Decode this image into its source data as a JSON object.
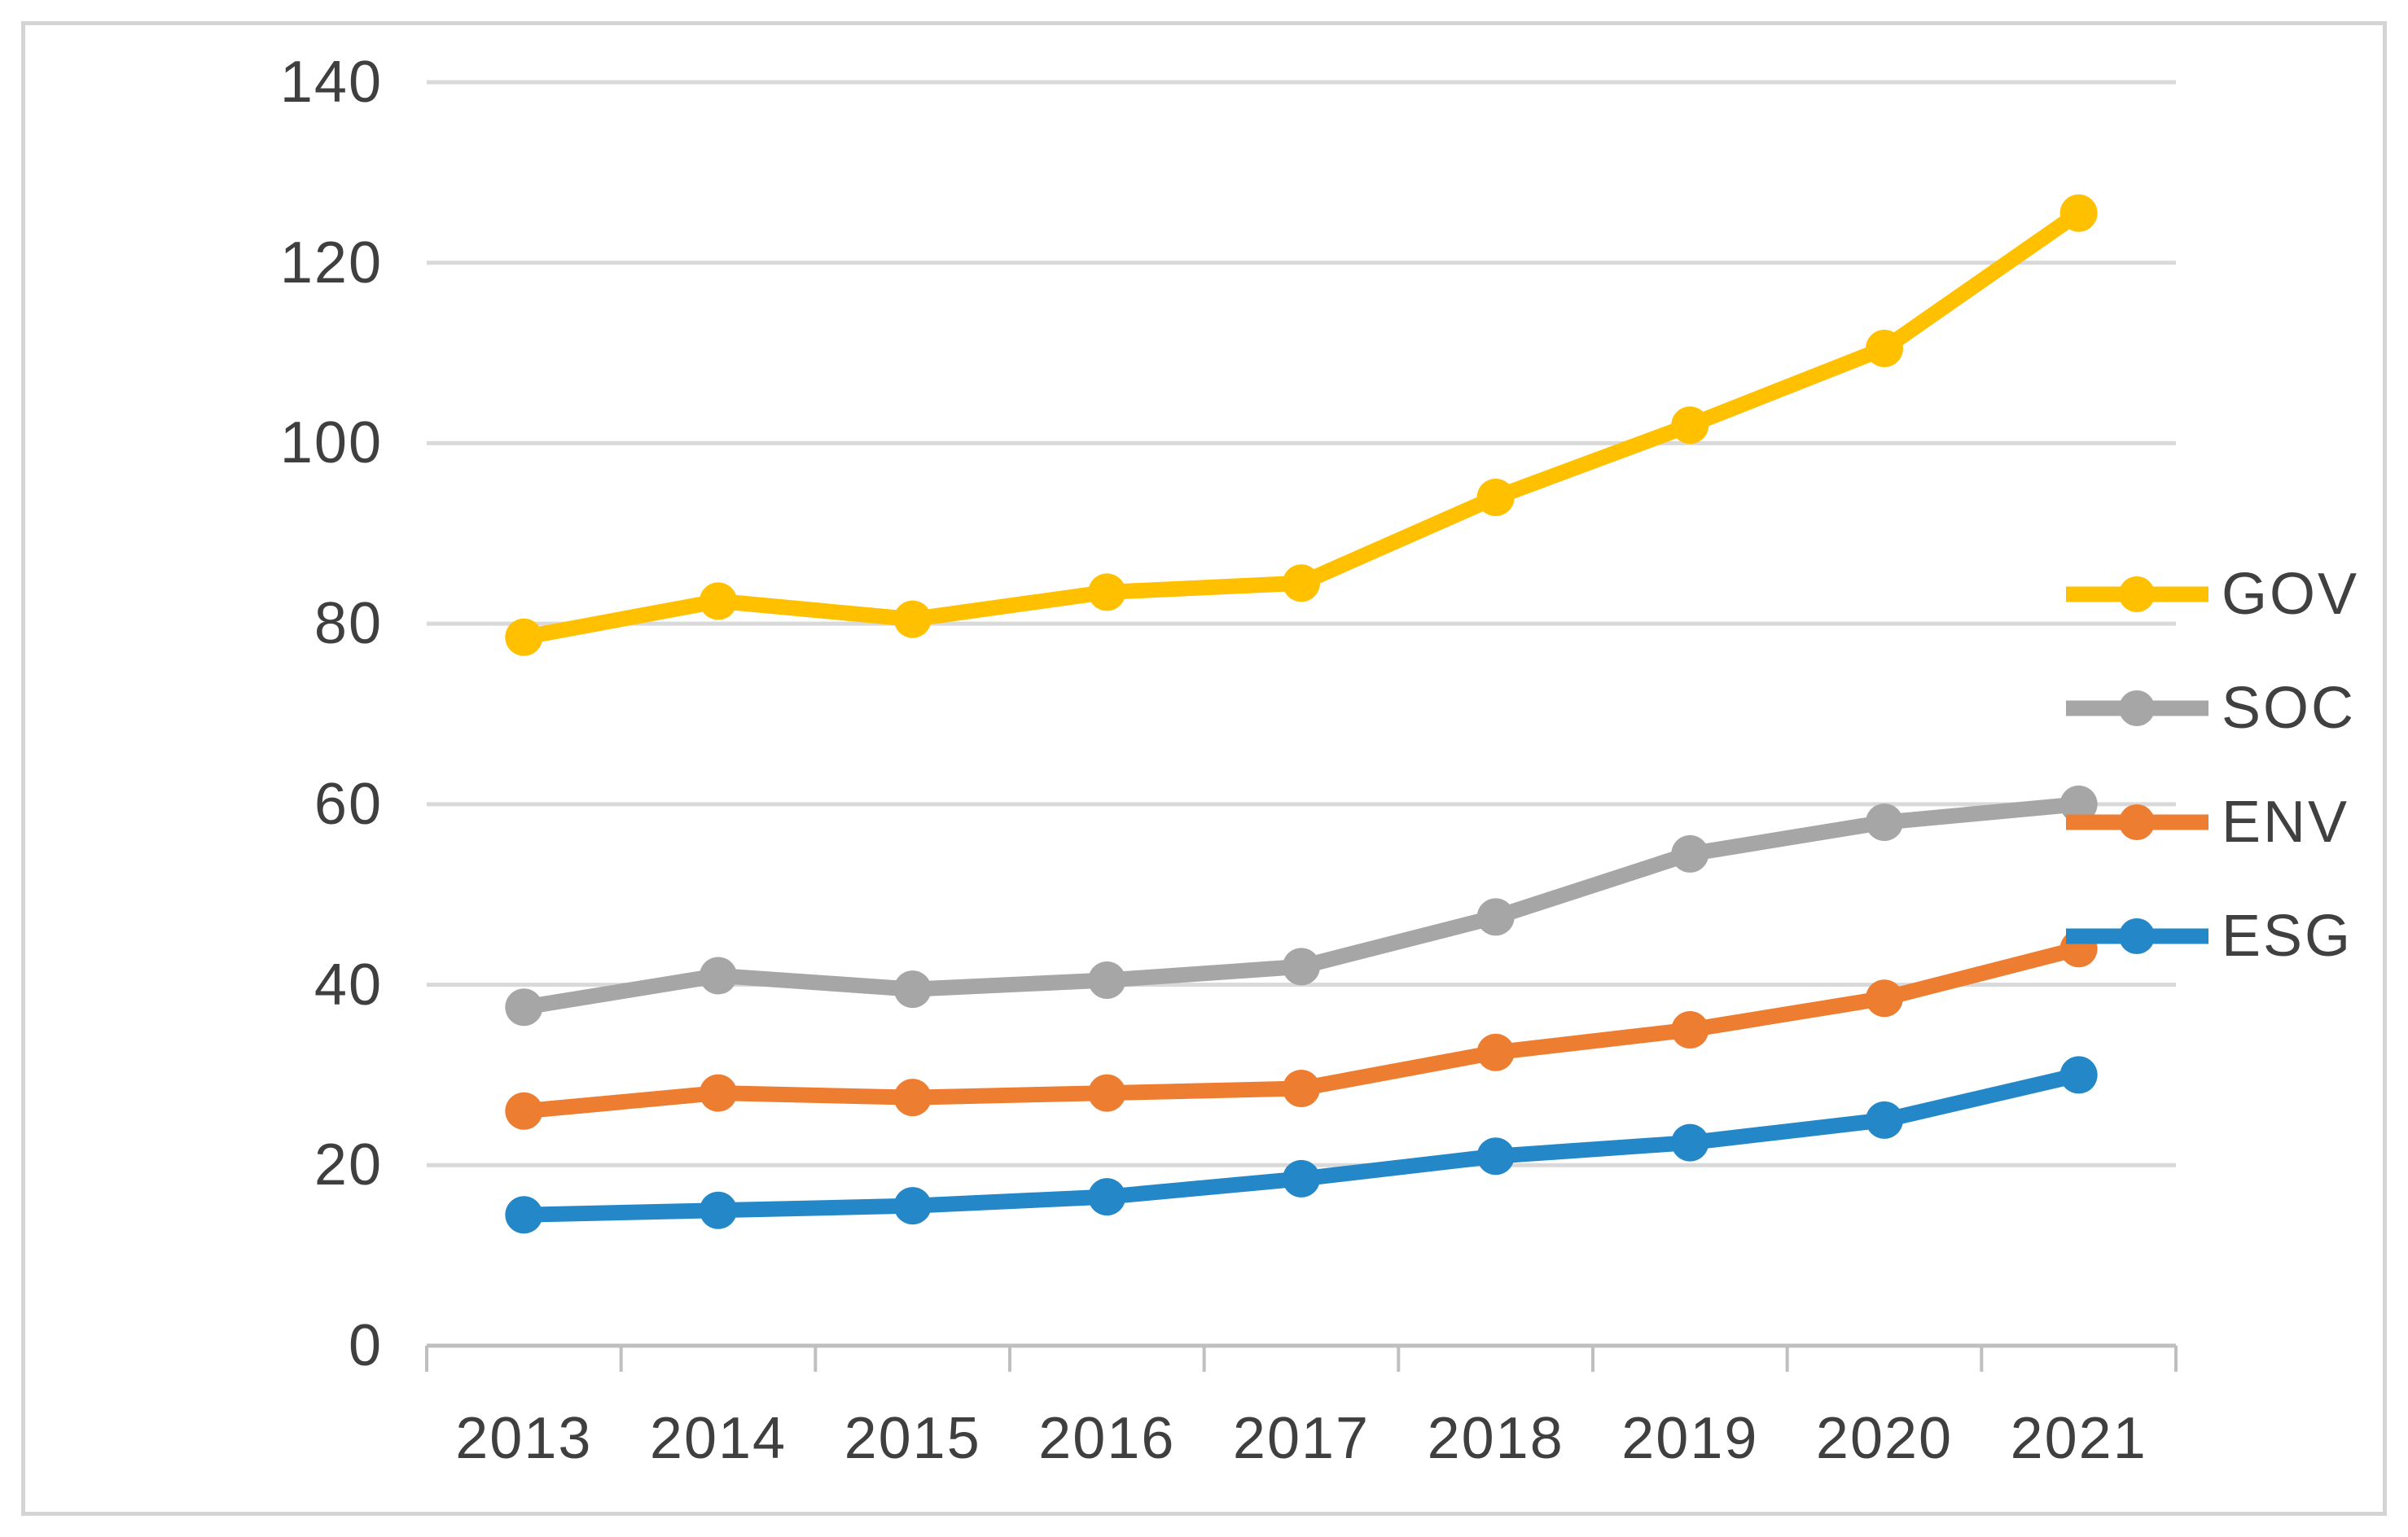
{
  "chart_data": {
    "type": "line",
    "title": "",
    "xlabel": "",
    "ylabel": "",
    "categories": [
      "2013",
      "2014",
      "2015",
      "2016",
      "2017",
      "2018",
      "2019",
      "2020",
      "2021"
    ],
    "series": [
      {
        "name": "GOV",
        "color": "#FFC000",
        "values": [
          78.5,
          82.5,
          80.5,
          83.5,
          84.5,
          94,
          102,
          110.5,
          125.5
        ]
      },
      {
        "name": "SOC",
        "color": "#A6A6A6",
        "values": [
          37.5,
          41,
          39.5,
          40.5,
          42,
          47.5,
          54.5,
          58,
          60
        ]
      },
      {
        "name": "ENV",
        "color": "#ED7D31",
        "values": [
          26,
          28,
          27.5,
          28,
          28.5,
          32.5,
          35,
          38.5,
          44
        ]
      },
      {
        "name": "ESG",
        "color": "#2488C8",
        "values": [
          14.5,
          15,
          15.5,
          16.5,
          18.5,
          21,
          22.5,
          25,
          30
        ]
      }
    ],
    "ylim": [
      0,
      140
    ],
    "yticks": [
      0,
      20,
      40,
      60,
      80,
      100,
      120,
      140
    ],
    "y_tick_labels": [
      "0",
      "20",
      "40",
      "60",
      "80",
      "100",
      "120",
      "140"
    ],
    "grid": true,
    "legend_position": "right",
    "legend_entries": [
      "GOV",
      "SOC",
      "ENV",
      "ESG"
    ],
    "marker": "circle"
  },
  "style": {
    "gridline_color": "#D9D9D9",
    "axis_line_color": "#BFBFBF",
    "tick_color": "#BFBFBF",
    "text_color": "#3F3F3F",
    "frame_color": "#D4D4D4",
    "background": "#FFFFFF"
  }
}
